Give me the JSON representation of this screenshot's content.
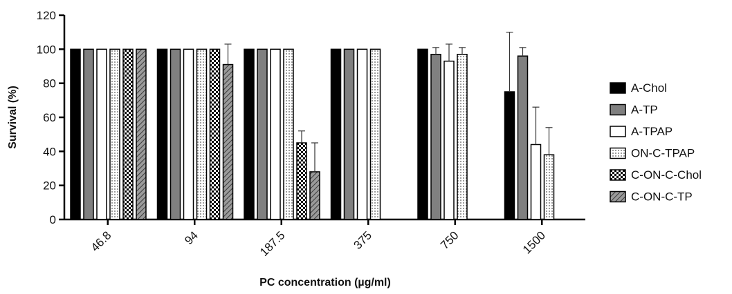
{
  "chart_data": {
    "type": "bar",
    "title": "",
    "xlabel": "PC concentration (µg/ml)",
    "ylabel": "Survival (%)",
    "ylim": [
      0,
      120
    ],
    "yticks": [
      0,
      20,
      40,
      60,
      80,
      100,
      120
    ],
    "categories": [
      "46.8",
      "94",
      "187.5",
      "375",
      "750",
      "1500"
    ],
    "legend_position": "right",
    "grid": false,
    "series": [
      {
        "name": "A-Chol",
        "color": "#000000",
        "pattern": "solid-black",
        "values": [
          100,
          100,
          100,
          100,
          100,
          75
        ],
        "errors": [
          0,
          0,
          0,
          0,
          0,
          35
        ]
      },
      {
        "name": "A-TP",
        "color": "#808080",
        "pattern": "solid-gray",
        "values": [
          100,
          100,
          100,
          100,
          97,
          96
        ],
        "errors": [
          0,
          0,
          0,
          0,
          4,
          5
        ]
      },
      {
        "name": "A-TPAP",
        "color": "#ffffff",
        "pattern": "white",
        "values": [
          100,
          100,
          100,
          100,
          93,
          44
        ],
        "errors": [
          0,
          0,
          0,
          0,
          10,
          22
        ]
      },
      {
        "name": "ON-C-TPAP",
        "color": "#ffffff",
        "pattern": "dots",
        "values": [
          100,
          100,
          100,
          100,
          97,
          38
        ],
        "errors": [
          0,
          0,
          0,
          0,
          4,
          16
        ]
      },
      {
        "name": "C-ON-C-Chol",
        "color": "#000000",
        "pattern": "checker",
        "values": [
          100,
          100,
          45,
          null,
          null,
          null
        ],
        "errors": [
          0,
          0,
          7,
          0,
          0,
          0
        ]
      },
      {
        "name": "C-ON-C-TP",
        "color": "#707070",
        "pattern": "hatch",
        "values": [
          100,
          91,
          28,
          null,
          null,
          null
        ],
        "errors": [
          0,
          12,
          17,
          0,
          0,
          0
        ]
      }
    ]
  }
}
